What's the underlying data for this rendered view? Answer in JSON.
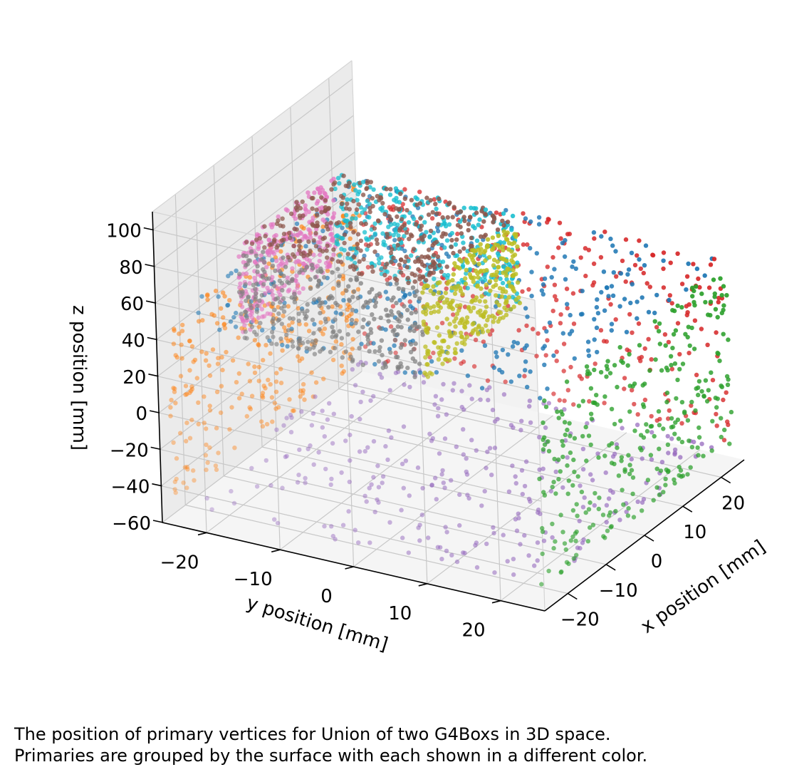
{
  "chart_data": {
    "type": "scatter",
    "projection": "3d",
    "title": "",
    "xlabel": "x position [mm]",
    "ylabel": "y position [mm]",
    "zlabel": "z position [mm]",
    "x_ticks": [
      -20,
      -10,
      0,
      10,
      20
    ],
    "y_ticks": [
      -20,
      -10,
      0,
      10,
      20
    ],
    "z_ticks": [
      -60,
      -40,
      -20,
      0,
      20,
      40,
      60,
      80,
      100
    ],
    "xlim": [
      -26,
      26
    ],
    "ylim": [
      -26,
      26
    ],
    "zlim": [
      -60,
      110
    ],
    "grid": true,
    "legend": "none",
    "points_per_surface_shown": "approximately 300",
    "series": [
      {
        "color": "#1f77b4",
        "surface": {
          "axis": "z",
          "value": 50,
          "x": [
            -25,
            25
          ],
          "y": [
            -25,
            25
          ]
        }
      },
      {
        "color": "#ff7f0e",
        "surface": {
          "axis": "y",
          "value": -25,
          "x": [
            -25,
            25
          ],
          "z": [
            -50,
            50
          ]
        }
      },
      {
        "color": "#2ca02c",
        "surface": {
          "axis": "y",
          "value": 25,
          "x": [
            -25,
            25
          ],
          "z": [
            -50,
            50
          ]
        }
      },
      {
        "color": "#d62728",
        "surface": {
          "axis": "x",
          "value": 25,
          "y": [
            -25,
            25
          ],
          "z": [
            -50,
            50
          ]
        }
      },
      {
        "color": "#9467bd",
        "surface": {
          "axis": "z",
          "value": -50,
          "x": [
            -25,
            25
          ],
          "y": [
            -25,
            25
          ]
        }
      },
      {
        "color": "#8c564b",
        "surface": {
          "axis": "z",
          "value": 100,
          "x": [
            -25,
            0
          ],
          "y": [
            -15,
            10
          ]
        }
      },
      {
        "color": "#e377c2",
        "surface": {
          "axis": "y",
          "value": -15,
          "x": [
            -25,
            0
          ],
          "z": [
            50,
            100
          ]
        }
      },
      {
        "color": "#7f7f7f",
        "surface": {
          "axis": "x",
          "value": -25,
          "y": [
            -15,
            10
          ],
          "z": [
            50,
            100
          ]
        }
      },
      {
        "color": "#bcbd22",
        "surface": {
          "axis": "y",
          "value": 10,
          "x": [
            -25,
            0
          ],
          "z": [
            50,
            100
          ]
        }
      },
      {
        "color": "#17becf",
        "surface": {
          "axis": "x",
          "value": 0,
          "y": [
            -15,
            10
          ],
          "z": [
            50,
            100
          ]
        }
      }
    ]
  },
  "caption": {
    "line1": "The position of primary vertices for Union of two G4Boxs in 3D space.",
    "line2": "Primaries are grouped by the surface with each shown in a different color."
  }
}
